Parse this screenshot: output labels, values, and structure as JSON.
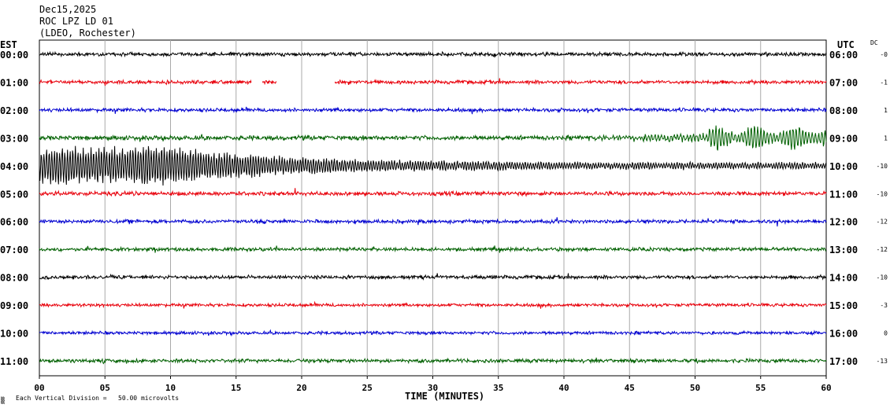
{
  "header": {
    "date": "Dec15,2025",
    "station": "ROC LPZ LD 01",
    "network": "(LDEO, Rochester)"
  },
  "left_axis_title": "EST",
  "right_axis_title": "UTC",
  "dc_title": "DC",
  "footer": {
    "scale_note": "Each Vertical Division =   50.00 microvolts",
    "corner_mark": "▒"
  },
  "colors": {
    "cycle": [
      "#000000",
      "#e8000b",
      "#0000d0",
      "#006000"
    ],
    "grid": "#a9a9a9"
  },
  "chart_data": {
    "type": "line",
    "title": "",
    "xlabel": "TIME (MINUTES)",
    "xlim": [
      0,
      60
    ],
    "x_ticks": [
      "00",
      "05",
      "10",
      "15",
      "20",
      "25",
      "30",
      "35",
      "40",
      "45",
      "50",
      "55",
      "60"
    ],
    "rows": [
      {
        "est": "00:00",
        "utc": "06:00",
        "dc": "-0",
        "color": "#000000",
        "amplitude": 0.8
      },
      {
        "est": "01:00",
        "utc": "07:00",
        "dc": "-1",
        "color": "#e8000b",
        "amplitude": 0.8,
        "gap_minutes": [
          [
            16.2,
            17.0
          ],
          [
            18.1,
            22.5
          ]
        ]
      },
      {
        "est": "02:00",
        "utc": "08:00",
        "dc": "1",
        "color": "#0000d0",
        "amplitude": 0.8
      },
      {
        "est": "03:00",
        "utc": "09:00",
        "dc": "1",
        "color": "#006000",
        "amplitude": 1.0,
        "event": "growing oscillation after minute 40, strong from minute 51 to 60"
      },
      {
        "est": "04:00",
        "utc": "10:00",
        "dc": "-10",
        "color": "#000000",
        "amplitude": 1.0,
        "event": "large earthquake signal decaying from minute 0 to 45"
      },
      {
        "est": "05:00",
        "utc": "11:00",
        "dc": "-10",
        "color": "#e8000b",
        "amplitude": 0.9
      },
      {
        "est": "06:00",
        "utc": "12:00",
        "dc": "-12",
        "color": "#0000d0",
        "amplitude": 0.8
      },
      {
        "est": "07:00",
        "utc": "13:00",
        "dc": "-12",
        "color": "#006000",
        "amplitude": 0.8
      },
      {
        "est": "08:00",
        "utc": "14:00",
        "dc": "-10",
        "color": "#000000",
        "amplitude": 0.8
      },
      {
        "est": "09:00",
        "utc": "15:00",
        "dc": "-3",
        "color": "#e8000b",
        "amplitude": 0.7
      },
      {
        "est": "10:00",
        "utc": "16:00",
        "dc": "0",
        "color": "#0000d0",
        "amplitude": 0.7
      },
      {
        "est": "11:00",
        "utc": "17:00",
        "dc": "-13",
        "color": "#006000",
        "amplitude": 0.8
      }
    ]
  }
}
